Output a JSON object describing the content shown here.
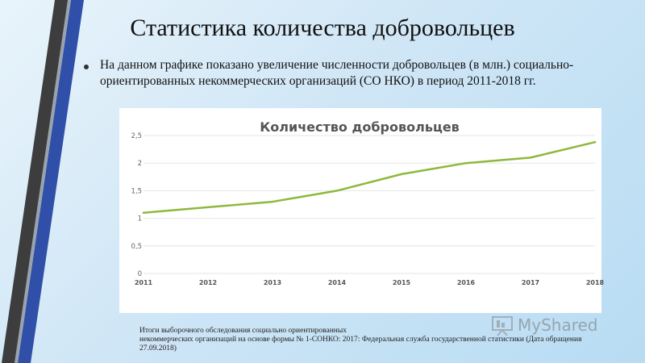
{
  "slide": {
    "title": "Статистика количества добровольцев",
    "bullet": "На данном графике показано увеличение численности добровольцев (в млн.) социально-ориентированных некоммерческих организаций (СО НКО) в период 2011-2018 гг.",
    "source_line1": "Итоги выборочного обследования социально ориентированных",
    "source_line2": "некоммерческих организаций на основе формы № 1-СОНКО: 2017: Федеральная служба государственной статистики (Дата обращения",
    "source_line3": "27.09.2018)",
    "watermark": "MyShared"
  },
  "colors": {
    "line": "#8fb83c",
    "grid": "#e6e6e6",
    "stripe_dark": "#3d3d3d",
    "stripe_blue": "#2f4fa8"
  },
  "chart_data": {
    "type": "line",
    "title": "Количество добровольцев",
    "x": [
      "2011",
      "2012",
      "2013",
      "2014",
      "2015",
      "2016",
      "2017",
      "2018"
    ],
    "series": [
      {
        "values": [
          1.1,
          1.2,
          1.3,
          1.5,
          1.8,
          2.0,
          2.1,
          2.38
        ]
      }
    ],
    "yticks": [
      "0",
      "0,5",
      "1",
      "1,5",
      "2",
      "2,5"
    ],
    "ylim": [
      0,
      2.5
    ],
    "grid": true,
    "legend": "none"
  }
}
